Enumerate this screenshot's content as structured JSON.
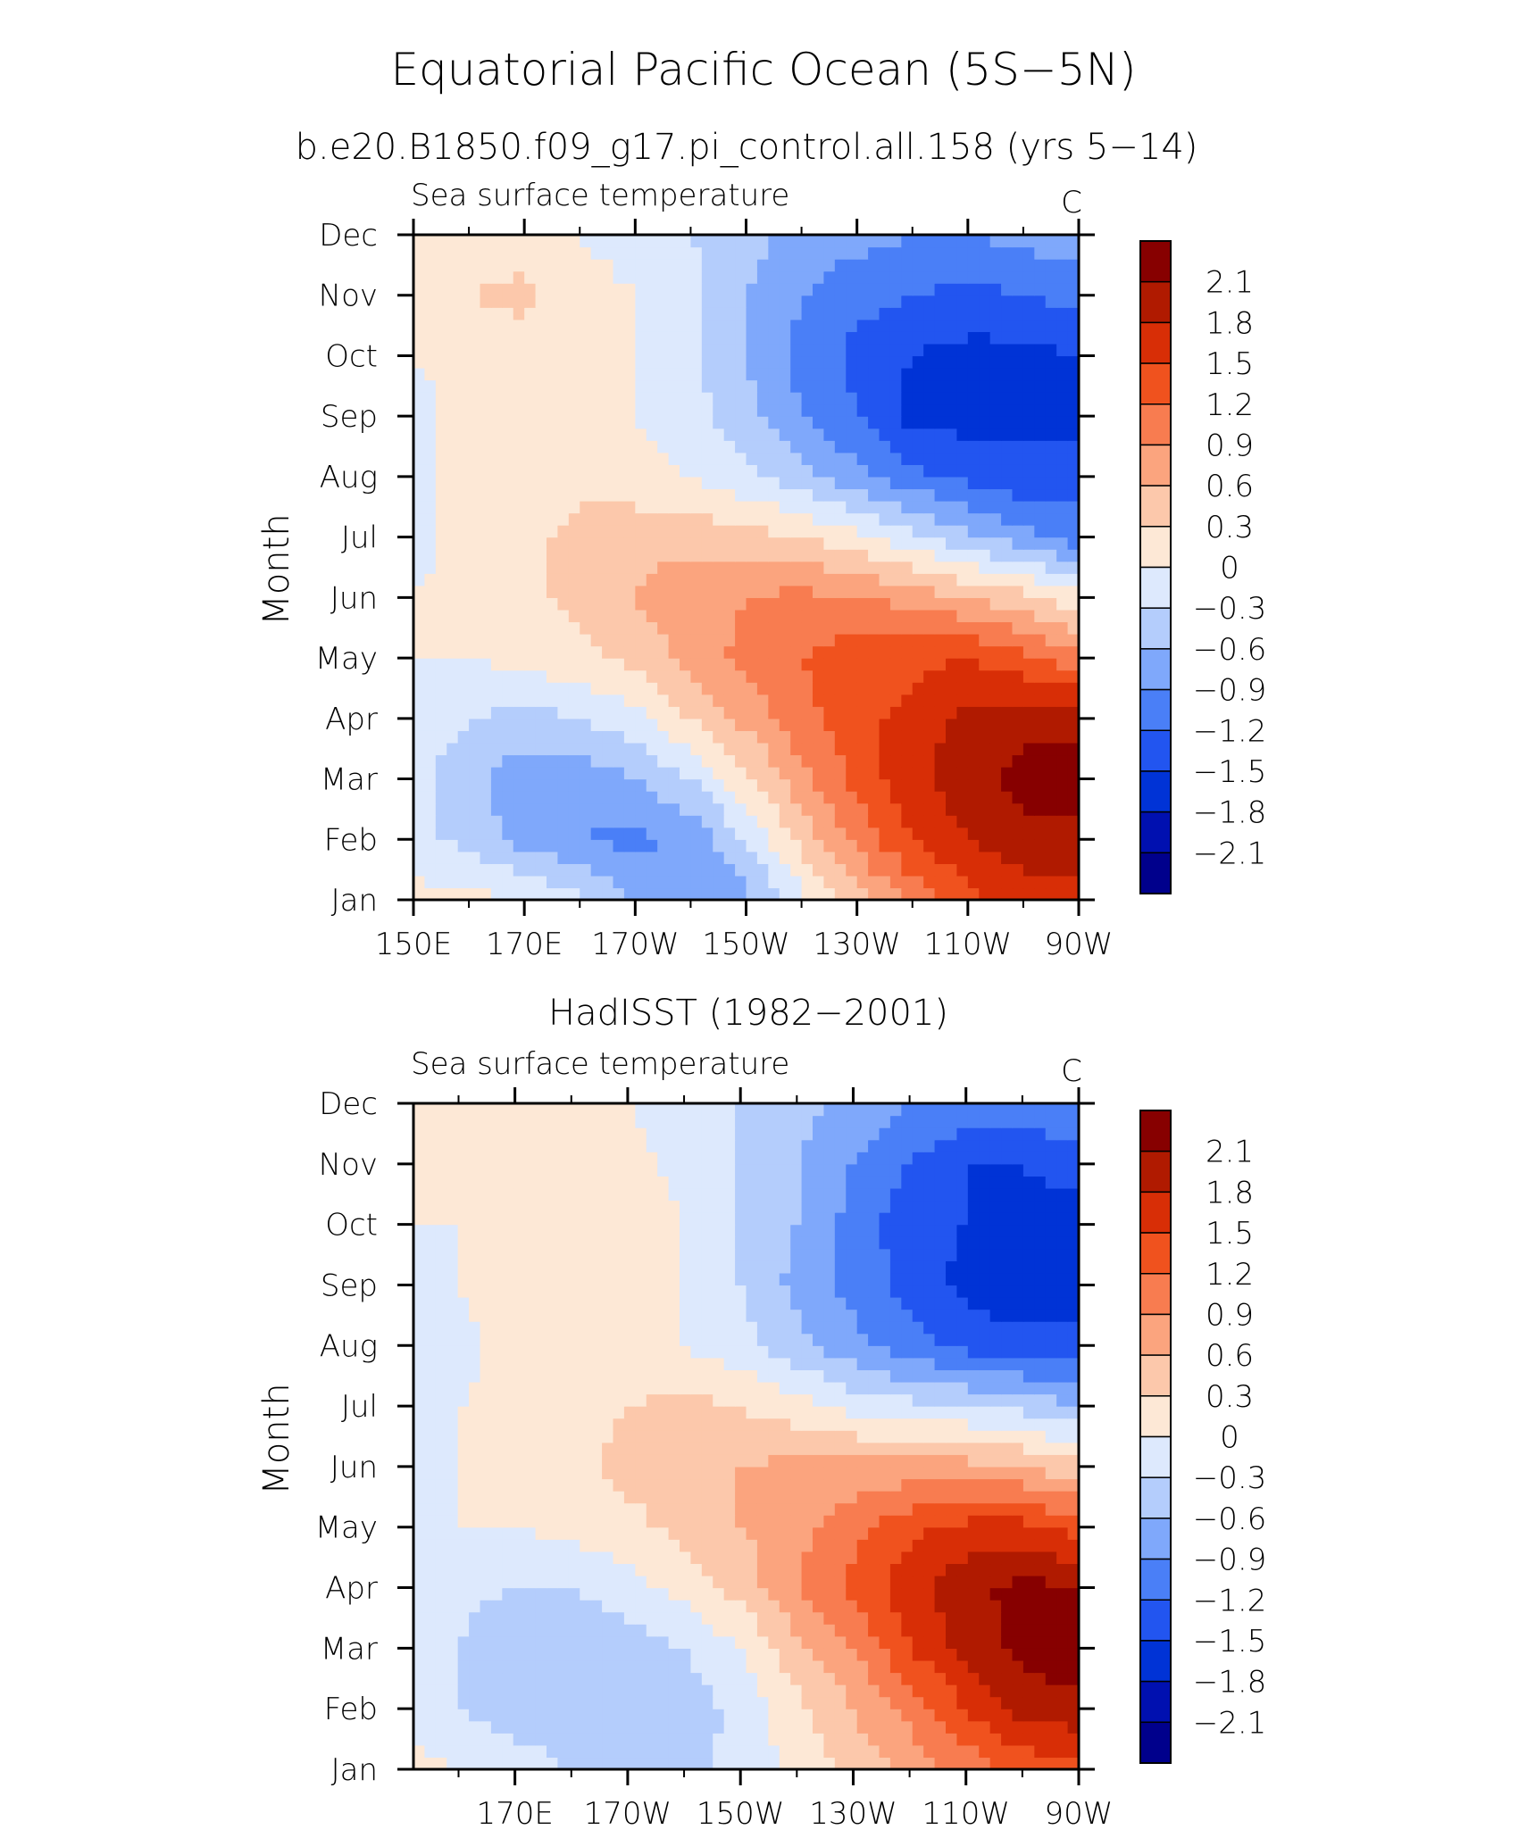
{
  "title": "Equatorial Pacific Ocean (5S−5N)",
  "chart_data": [
    {
      "type": "heatmap",
      "title": "b.e20.B1850.f09_g17.pi_control.all.158 (yrs 5−14)",
      "subtitle_left": "Sea surface temperature",
      "units": "C",
      "ylabel": "Month",
      "xlabel": "",
      "x_ticklabels": [
        "150E",
        "170E",
        "170W",
        "150W",
        "130W",
        "110W",
        "90W"
      ],
      "y_ticklabels": [
        "Jan",
        "Feb",
        "Mar",
        "Apr",
        "May",
        "Jun",
        "Jul",
        "Aug",
        "Sep",
        "Oct",
        "Nov",
        "Dec"
      ],
      "xlim": [
        150,
        270
      ],
      "colorbar_levels": [
        "2.1",
        "1.8",
        "1.5",
        "1.2",
        "0.9",
        "0.6",
        "0.3",
        "0",
        "−0.3",
        "−0.6",
        "−0.9",
        "−1.2",
        "−1.5",
        "−1.8",
        "−2.1"
      ],
      "x_lon": [
        150,
        160,
        170,
        180,
        190,
        200,
        210,
        220,
        230,
        240,
        250,
        260,
        270
      ],
      "values": [
        [
          0.1,
          0.1,
          0.0,
          -0.2,
          -0.6,
          -0.9,
          -0.7,
          -0.1,
          0.5,
          1.0,
          1.4,
          1.6,
          1.7
        ],
        [
          -0.2,
          -0.4,
          -0.7,
          -0.9,
          -1.0,
          -0.8,
          -0.3,
          0.4,
          1.0,
          1.5,
          1.8,
          2.0,
          2.0
        ],
        [
          -0.2,
          -0.5,
          -0.8,
          -0.8,
          -0.6,
          -0.3,
          0.2,
          0.8,
          1.3,
          1.7,
          2.0,
          2.2,
          2.3
        ],
        [
          -0.1,
          -0.3,
          -0.4,
          -0.3,
          -0.1,
          0.3,
          0.7,
          1.1,
          1.4,
          1.6,
          1.9,
          2.0,
          2.0
        ],
        [
          0.0,
          0.0,
          0.1,
          0.2,
          0.4,
          0.7,
          1.0,
          1.2,
          1.4,
          1.4,
          1.5,
          1.3,
          1.0
        ],
        [
          0.0,
          0.1,
          0.2,
          0.4,
          0.6,
          0.8,
          0.9,
          1.0,
          0.9,
          0.8,
          0.6,
          0.4,
          0.1
        ],
        [
          -0.1,
          0.1,
          0.2,
          0.4,
          0.5,
          0.5,
          0.4,
          0.3,
          0.1,
          -0.2,
          -0.5,
          -0.8,
          -1.1
        ],
        [
          -0.1,
          0.1,
          0.2,
          0.2,
          0.1,
          0.0,
          -0.2,
          -0.5,
          -0.8,
          -1.1,
          -1.3,
          -1.4,
          -1.3
        ],
        [
          -0.1,
          0.1,
          0.1,
          0.1,
          0.0,
          -0.2,
          -0.5,
          -0.9,
          -1.2,
          -1.6,
          -1.6,
          -1.6,
          -1.6
        ],
        [
          0.0,
          0.1,
          0.1,
          0.1,
          0.0,
          -0.2,
          -0.6,
          -1.0,
          -1.3,
          -1.5,
          -1.6,
          -1.6,
          -1.5
        ],
        [
          0.1,
          0.3,
          0.4,
          0.1,
          0.0,
          -0.2,
          -0.6,
          -0.9,
          -1.1,
          -1.2,
          -1.3,
          -1.2,
          -1.1
        ],
        [
          0.1,
          0.1,
          0.1,
          0.0,
          -0.1,
          -0.3,
          -0.5,
          -0.7,
          -0.8,
          -0.9,
          -0.9,
          -0.8,
          -0.7
        ]
      ]
    },
    {
      "type": "heatmap",
      "title": "HadISST (1982−2001)",
      "subtitle_left": "Sea surface temperature",
      "units": "C",
      "ylabel": "Month",
      "xlabel": "",
      "x_ticklabels": [
        "170E",
        "170W",
        "150W",
        "130W",
        "110W",
        "90W"
      ],
      "y_ticklabels": [
        "Jan",
        "Feb",
        "Mar",
        "Apr",
        "May",
        "Jun",
        "Jul",
        "Aug",
        "Sep",
        "Oct",
        "Nov",
        "Dec"
      ],
      "xlim": [
        152,
        270
      ],
      "colorbar_levels": [
        "2.1",
        "1.8",
        "1.5",
        "1.2",
        "0.9",
        "0.6",
        "0.3",
        "0",
        "−0.3",
        "−0.6",
        "−0.9",
        "−1.2",
        "−1.5",
        "−1.8",
        "−2.1"
      ],
      "x_lon": [
        150,
        160,
        170,
        180,
        190,
        200,
        210,
        220,
        230,
        240,
        250,
        260,
        270
      ],
      "values": [
        [
          0.1,
          0.0,
          -0.1,
          -0.3,
          -0.4,
          -0.4,
          -0.2,
          0.1,
          0.4,
          0.7,
          1.0,
          1.3,
          1.4
        ],
        [
          -0.1,
          -0.3,
          -0.5,
          -0.6,
          -0.6,
          -0.5,
          -0.2,
          0.2,
          0.6,
          1.0,
          1.5,
          1.9,
          2.0
        ],
        [
          -0.1,
          -0.3,
          -0.6,
          -0.6,
          -0.5,
          -0.3,
          0.0,
          0.5,
          0.9,
          1.5,
          1.9,
          2.2,
          2.3
        ],
        [
          -0.1,
          -0.2,
          -0.3,
          -0.3,
          -0.1,
          0.1,
          0.4,
          0.9,
          1.3,
          1.7,
          2.0,
          2.2,
          2.1
        ],
        [
          0.0,
          0.0,
          0.0,
          0.1,
          0.2,
          0.4,
          0.6,
          0.8,
          1.1,
          1.4,
          1.6,
          1.6,
          1.4
        ],
        [
          -0.1,
          0.0,
          0.1,
          0.2,
          0.4,
          0.5,
          0.6,
          0.7,
          0.7,
          0.7,
          0.7,
          0.6,
          0.4
        ],
        [
          -0.1,
          0.0,
          0.1,
          0.2,
          0.3,
          0.4,
          0.3,
          0.1,
          -0.1,
          -0.2,
          -0.3,
          -0.4,
          -0.6
        ],
        [
          -0.2,
          -0.1,
          0.1,
          0.2,
          0.1,
          0.0,
          -0.2,
          -0.5,
          -0.8,
          -1.1,
          -1.3,
          -1.4,
          -1.4
        ],
        [
          -0.1,
          0.0,
          0.2,
          0.3,
          0.2,
          0.0,
          -0.3,
          -0.7,
          -1.0,
          -1.3,
          -1.6,
          -1.7,
          -1.7
        ],
        [
          0.0,
          0.0,
          0.2,
          0.2,
          0.2,
          0.0,
          -0.3,
          -0.6,
          -1.0,
          -1.4,
          -1.5,
          -1.6,
          -1.6
        ],
        [
          0.0,
          0.0,
          0.1,
          0.1,
          0.1,
          -0.1,
          -0.3,
          -0.6,
          -0.9,
          -1.2,
          -1.5,
          -1.5,
          -1.4
        ],
        [
          0.0,
          0.0,
          0.1,
          0.1,
          0.0,
          -0.1,
          -0.3,
          -0.5,
          -0.7,
          -0.9,
          -1.0,
          -1.0,
          -0.9
        ]
      ]
    }
  ],
  "palette": [
    "#00008c",
    "#0010b0",
    "#0033d6",
    "#2255f0",
    "#4a7ff7",
    "#7fa8fb",
    "#b4cdfc",
    "#dde9fd",
    "#fde8d6",
    "#fcc8ab",
    "#fba47e",
    "#f87c50",
    "#f0521e",
    "#d82e06",
    "#b01a00",
    "#870000"
  ],
  "palette_bounds": [
    -2.1,
    -1.8,
    -1.5,
    -1.2,
    -0.9,
    -0.6,
    -0.3,
    0,
    0.3,
    0.6,
    0.9,
    1.2,
    1.5,
    1.8,
    2.1
  ]
}
